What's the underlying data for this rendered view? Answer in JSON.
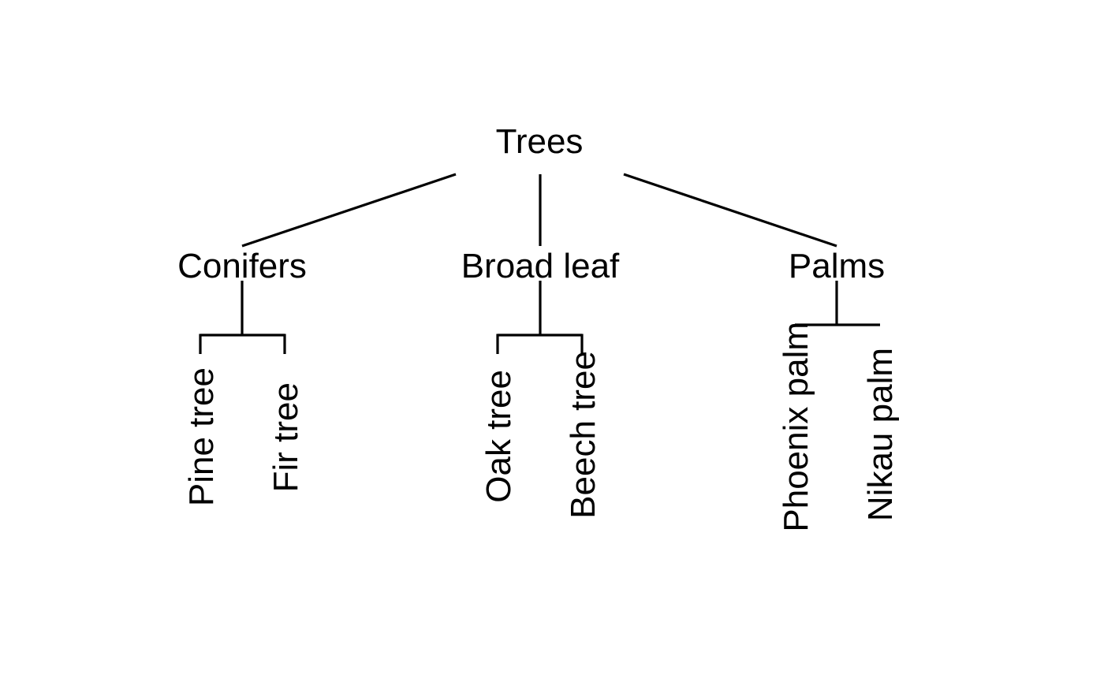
{
  "tree": {
    "root": "Trees",
    "groups": [
      {
        "label": "Conifers",
        "leaves": [
          "Pine tree",
          "Fir tree"
        ]
      },
      {
        "label": "Broad leaf",
        "leaves": [
          "Oak tree",
          "Beech tree"
        ]
      },
      {
        "label": "Palms",
        "leaves": [
          "Phoenix palm",
          "Nikau palm"
        ]
      }
    ]
  },
  "colors": {
    "line": "#000000",
    "text": "#000000",
    "background": "#ffffff"
  }
}
